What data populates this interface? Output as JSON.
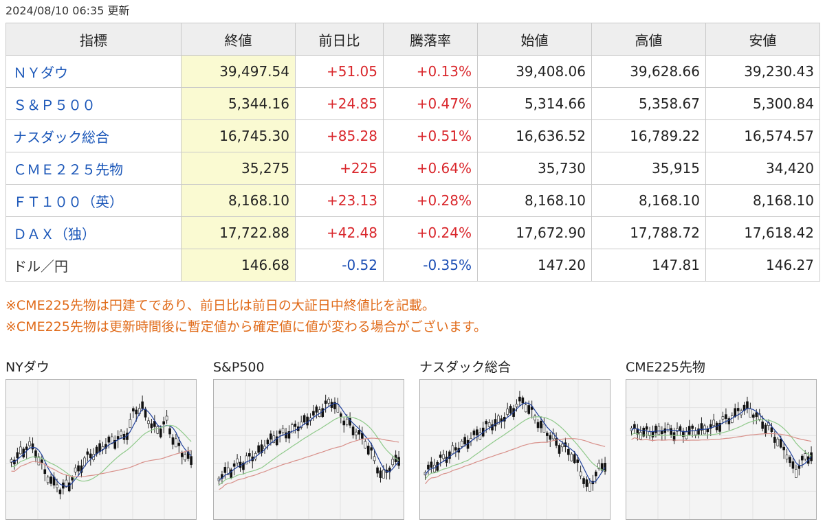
{
  "updated": "2024/08/10 06:35 更新",
  "table": {
    "headers": [
      "指標",
      "終値",
      "前日比",
      "騰落率",
      "始値",
      "高値",
      "安値"
    ],
    "rows": [
      {
        "name": "ＮＹダウ",
        "link": true,
        "close": "39,497.54",
        "change": "+51.05",
        "rate": "+0.13%",
        "direction": "up",
        "open": "39,408.06",
        "high": "39,628.66",
        "low": "39,230.43"
      },
      {
        "name": "Ｓ＆Ｐ５００",
        "link": true,
        "close": "5,344.16",
        "change": "+24.85",
        "rate": "+0.47%",
        "direction": "up",
        "open": "5,314.66",
        "high": "5,358.67",
        "low": "5,300.84"
      },
      {
        "name": "ナスダック総合",
        "link": true,
        "close": "16,745.30",
        "change": "+85.28",
        "rate": "+0.51%",
        "direction": "up",
        "open": "16,636.52",
        "high": "16,789.22",
        "low": "16,574.57"
      },
      {
        "name": "ＣＭＥ２２５先物",
        "link": true,
        "close": "35,275",
        "change": "+225",
        "rate": "+0.64%",
        "direction": "up",
        "open": "35,730",
        "high": "35,915",
        "low": "34,420"
      },
      {
        "name": "ＦＴ１００（英）",
        "link": true,
        "close": "8,168.10",
        "change": "+23.13",
        "rate": "+0.28%",
        "direction": "up",
        "open": "8,168.10",
        "high": "8,168.10",
        "low": "8,168.10"
      },
      {
        "name": "ＤＡＸ（独）",
        "link": true,
        "close": "17,722.88",
        "change": "+42.48",
        "rate": "+0.24%",
        "direction": "up",
        "open": "17,672.90",
        "high": "17,788.72",
        "low": "17,618.42"
      },
      {
        "name": "ドル／円",
        "link": false,
        "close": "146.68",
        "change": "-0.52",
        "rate": "-0.35%",
        "direction": "down",
        "open": "147.20",
        "high": "147.81",
        "low": "146.27"
      }
    ]
  },
  "notes": [
    "※CME225先物は円建てであり、前日比は前日の大証日中終値比を記載。",
    "※CME225先物は更新時間後に暫定値から確定値に値が変わる場合がございます。"
  ],
  "charts": [
    {
      "title": "NYダウ"
    },
    {
      "title": "S&P500"
    },
    {
      "title": "ナスダック総合"
    },
    {
      "title": "CME225先物"
    }
  ],
  "colors": {
    "up": "#d9262b",
    "down": "#1a4db4",
    "link": "#1a56b8",
    "close_bg": "#fafad2",
    "note": "#e06b1a"
  }
}
